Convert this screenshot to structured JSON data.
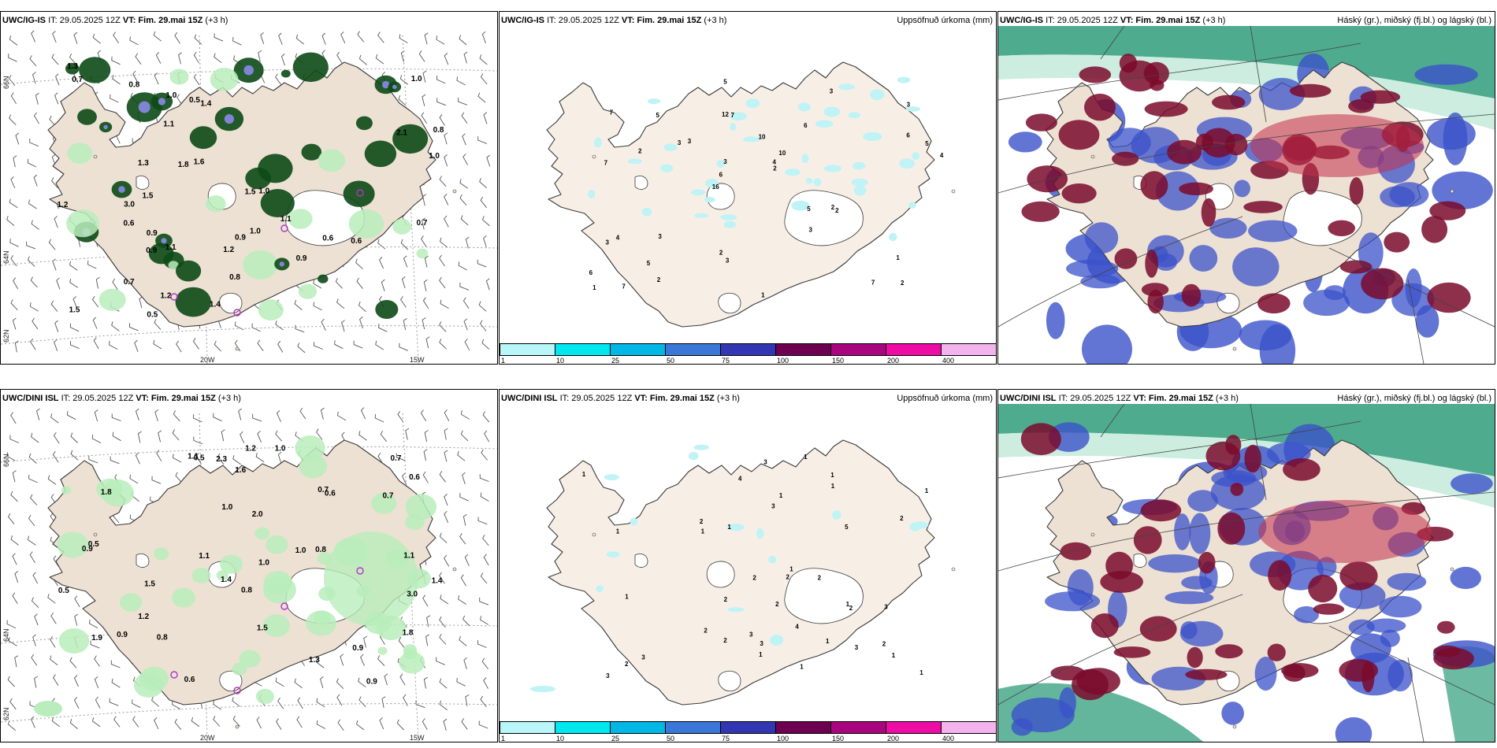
{
  "panels": {
    "ig_wind": {
      "model": "UWC/IG-IS",
      "run": "IT: 29.05.2025 12Z",
      "vt_label": "VT:",
      "vt": "Fim. 29.mai 15Z",
      "lead": "(+3 h)",
      "lon_labels": [
        "20W",
        "15W"
      ],
      "lat_labels": [
        "66N",
        "64N",
        "62N"
      ],
      "values": [
        "0.7",
        "1.3",
        "1.2",
        "1.0",
        "0.8",
        "0.9",
        "1.4",
        "1.1",
        "1.5",
        "0.6",
        "0.9",
        "1.0",
        "0.5",
        "0.6",
        "0.9",
        "1.8",
        "1.2",
        "0.7",
        "1.1",
        "1.6",
        "1.0",
        "0.8",
        "1.2",
        "1.5",
        "3.0",
        "1.0",
        "0.9",
        "0.6",
        "1.4",
        "0.5",
        "1.1",
        "1.0",
        "2.1",
        "0.7",
        "1.5",
        "1.3",
        "0.8"
      ]
    },
    "ig_precip": {
      "model": "UWC/IG-IS",
      "run": "IT: 29.05.2025 12Z",
      "vt_label": "VT:",
      "vt": "Fim. 29.mai 15Z",
      "lead": "(+3 h)",
      "title_right": "Uppsöfnuð úrkoma (mm)",
      "values": [
        "2",
        "7",
        "3",
        "16",
        "6",
        "7",
        "12",
        "10",
        "4",
        "3",
        "6",
        "5",
        "7",
        "10",
        "2",
        "7",
        "5",
        "4",
        "5",
        "6",
        "6",
        "2",
        "3",
        "5",
        "3",
        "3",
        "7",
        "1",
        "2",
        "1",
        "3",
        "2",
        "3",
        "2",
        "5",
        "4",
        "1",
        "3",
        "2",
        "3"
      ]
    },
    "ig_cloud": {
      "model": "UWC/IG-IS",
      "run": "IT: 29.05.2025 12Z",
      "vt_label": "VT:",
      "vt": "Fim. 29.mai 15Z",
      "lead": "(+3 h)",
      "title_right": "Háský (gr.), miðský (fj.bl.) og lágský (bl.)"
    },
    "dini_wind": {
      "model": "UWC/DINI ISL",
      "run": "IT: 29.05.2025 12Z",
      "vt_label": "VT:",
      "vt": "Fim. 29.mai 15Z",
      "lead": "(+3 h)",
      "lon_labels": [
        "20W",
        "15W"
      ],
      "lat_labels": [
        "66N",
        "64N",
        "62N"
      ],
      "values": [
        "1.1",
        "1.5",
        "0.9",
        "1.0",
        "1.3",
        "1.6",
        "0.5",
        "0.8",
        "0.9",
        "1.0",
        "1.8",
        "0.5",
        "1.2",
        "0.7",
        "0.6",
        "1.5",
        "1.1",
        "1.4",
        "0.9",
        "1.2",
        "0.8",
        "0.6",
        "1.0",
        "0.7",
        "1.1",
        "3.0",
        "1.8",
        "2.0",
        "1.4",
        "0.5",
        "1.9",
        "0.8",
        "0.6",
        "1.0",
        "2.3",
        "0.9",
        "0.7"
      ]
    },
    "dini_precip": {
      "model": "UWC/DINI ISL",
      "run": "IT: 29.05.2025 12Z",
      "vt_label": "VT:",
      "vt": "Fim. 29.mai 15Z",
      "lead": "(+3 h)",
      "title_right": "Uppsöfnuð úrkoma (mm)",
      "values": [
        "2",
        "3",
        "1",
        "2",
        "4",
        "1",
        "2",
        "1",
        "3",
        "2",
        "1",
        "1",
        "2",
        "3",
        "1",
        "2",
        "1",
        "1",
        "2",
        "1",
        "1",
        "3",
        "1",
        "2",
        "2",
        "1",
        "1",
        "3",
        "2",
        "4",
        "1",
        "2",
        "1",
        "3",
        "2",
        "1",
        "3",
        "5",
        "1",
        "3"
      ]
    },
    "dini_cloud": {
      "model": "UWC/DINI ISL",
      "run": "IT: 29.05.2025 12Z",
      "vt_label": "VT:",
      "vt": "Fim. 29.mai 15Z",
      "lead": "(+3 h)",
      "title_right": "Háský (gr.), miðský (fj.bl.) og lágský (bl.)"
    }
  },
  "colorbar": {
    "ticks": [
      "1",
      "10",
      "25",
      "50",
      "75",
      "100",
      "150",
      "200",
      "400"
    ],
    "colors": [
      "#b9f6f9",
      "#00e7f0",
      "#00b7e6",
      "#3a77d8",
      "#3236b2",
      "#6e0051",
      "#a9057f",
      "#ed0ca4",
      "#f3b4ee"
    ]
  },
  "colors": {
    "land": "#ede1d3",
    "precip_land": "#f7efe6",
    "coast": "#3a3a3a",
    "green_dark": "#0c4a16",
    "green_light": "#b9edbb",
    "cloud_high": "#2f9c7a",
    "cloud_mid": "#3b52c9",
    "cloud_low": "#7a0a2c"
  }
}
